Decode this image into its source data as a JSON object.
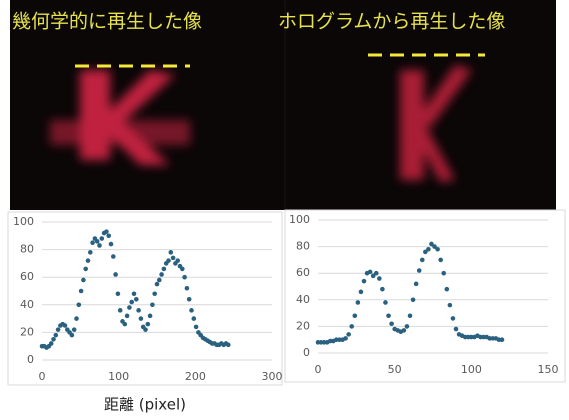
{
  "images": [
    {
      "caption": "幾何学的に再生した像"
    },
    {
      "caption": "ホログラムから再生した像"
    }
  ],
  "chart_data": [
    {
      "type": "scatter",
      "color": "#2b6180",
      "grid": true,
      "xlabel": "距離 (pixel)",
      "xlim": [
        0,
        300
      ],
      "xticks": [
        0,
        100,
        200,
        300
      ],
      "ylim": [
        0,
        100
      ],
      "yticks": [
        0,
        20,
        40,
        60,
        80,
        100
      ],
      "x": [
        0,
        3,
        6,
        9,
        12,
        15,
        18,
        21,
        24,
        27,
        30,
        33,
        36,
        39,
        42,
        45,
        48,
        51,
        54,
        57,
        60,
        63,
        66,
        69,
        72,
        75,
        78,
        81,
        84,
        87,
        90,
        93,
        96,
        99,
        102,
        105,
        108,
        111,
        114,
        117,
        120,
        123,
        126,
        129,
        132,
        135,
        138,
        141,
        144,
        147,
        150,
        153,
        156,
        159,
        162,
        165,
        168,
        171,
        174,
        177,
        180,
        183,
        186,
        189,
        192,
        195,
        198,
        201,
        204,
        207,
        210,
        213,
        216,
        219,
        222,
        225,
        228,
        231,
        234,
        237,
        240,
        243
      ],
      "values": [
        10,
        10,
        9,
        10,
        12,
        15,
        18,
        22,
        25,
        26,
        25,
        22,
        20,
        18,
        22,
        30,
        40,
        50,
        58,
        66,
        72,
        78,
        85,
        88,
        86,
        83,
        88,
        92,
        93,
        90,
        84,
        75,
        62,
        48,
        36,
        28,
        26,
        32,
        38,
        42,
        48,
        44,
        36,
        30,
        24,
        22,
        26,
        32,
        40,
        48,
        55,
        58,
        62,
        66,
        70,
        72,
        78,
        74,
        70,
        72,
        68,
        66,
        60,
        52,
        44,
        36,
        30,
        24,
        20,
        18,
        16,
        15,
        14,
        13,
        12,
        12,
        11,
        11,
        12,
        11,
        12,
        11
      ]
    },
    {
      "type": "scatter",
      "color": "#2b6180",
      "grid": true,
      "xlim": [
        0,
        150
      ],
      "xticks": [
        0,
        50,
        100,
        150
      ],
      "ylim": [
        0,
        100
      ],
      "yticks": [
        0,
        20,
        40,
        60,
        80,
        100
      ],
      "x": [
        0,
        2,
        4,
        6,
        8,
        10,
        12,
        14,
        16,
        18,
        20,
        22,
        24,
        26,
        28,
        30,
        32,
        34,
        36,
        38,
        40,
        42,
        44,
        46,
        48,
        50,
        52,
        54,
        56,
        58,
        60,
        62,
        64,
        66,
        68,
        70,
        72,
        74,
        76,
        78,
        80,
        82,
        84,
        86,
        88,
        90,
        92,
        94,
        96,
        98,
        100,
        102,
        104,
        106,
        108,
        110,
        112,
        114,
        116,
        118,
        120
      ],
      "values": [
        8,
        8,
        8,
        8,
        9,
        9,
        10,
        10,
        10,
        11,
        14,
        20,
        28,
        38,
        46,
        54,
        60,
        61,
        58,
        60,
        56,
        48,
        38,
        28,
        22,
        18,
        17,
        16,
        17,
        20,
        28,
        40,
        52,
        62,
        70,
        76,
        78,
        82,
        80,
        78,
        70,
        60,
        48,
        36,
        26,
        18,
        14,
        13,
        12,
        12,
        12,
        12,
        13,
        12,
        12,
        12,
        11,
        11,
        11,
        10,
        10
      ]
    }
  ]
}
